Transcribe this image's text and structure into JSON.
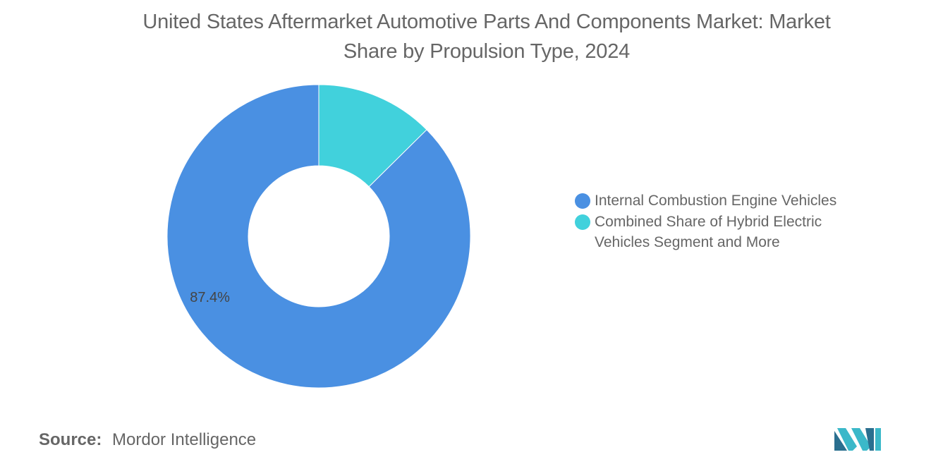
{
  "chart_data": {
    "type": "pie",
    "variant": "donut",
    "title_lines": [
      "United States Aftermarket Automotive Parts And Components Market: Market",
      "Share by Propulsion Type, 2024"
    ],
    "slices": [
      {
        "name": "Internal Combustion Engine Vehicles",
        "value": 87.4,
        "color": "#4a90e2",
        "label": "87.4%"
      },
      {
        "name": "Combined Share of Hybrid Electric Vehicles Segment and More",
        "value": 12.6,
        "color": "#41d1dc",
        "label": ""
      }
    ],
    "legend_placement": "right",
    "legend_lines": [
      [
        "Internal Combustion Engine Vehicles"
      ],
      [
        "Combined Share of Hybrid Electric",
        "Vehicles Segment and More"
      ]
    ]
  },
  "source": {
    "label": "Source:",
    "text": "Mordor Intelligence"
  },
  "logo": {
    "icon": "mordor-intelligence-logo",
    "colors": [
      "#2a6f8f",
      "#3bb8c9"
    ]
  }
}
